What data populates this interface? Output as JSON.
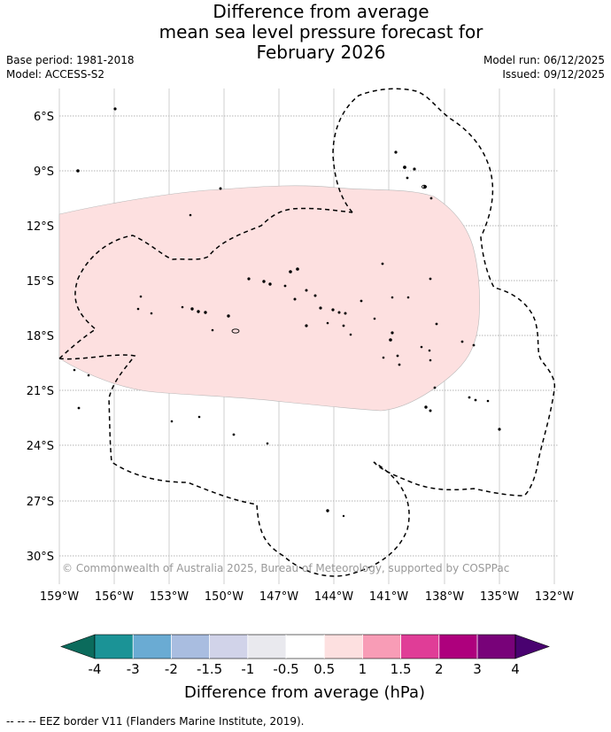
{
  "title": {
    "line1": "Difference from average",
    "line2": "mean sea level pressure forecast for",
    "line3": "February 2026"
  },
  "meta": {
    "base_period": "Base period: 1981-2018",
    "model": "Model: ACCESS-S2",
    "model_run": "Model run: 06/12/2025",
    "issued": "Issued: 09/12/2025"
  },
  "map": {
    "lat_labels": [
      "6°S",
      "9°S",
      "12°S",
      "15°S",
      "18°S",
      "21°S",
      "24°S",
      "27°S",
      "30°S"
    ],
    "lon_labels": [
      "159°W",
      "156°W",
      "153°W",
      "150°W",
      "147°W",
      "144°W",
      "141°W",
      "138°W",
      "135°W",
      "132°W"
    ],
    "credit": "© Commonwealth of Australia 2025, Bureau of Meteorology, supported by COSPPac",
    "anomaly_fill_color": "#fde0e0",
    "anomaly_category": "0.5 to 1"
  },
  "colorbar": {
    "ticks": [
      "-4",
      "-3",
      "-2",
      "-1.5",
      "-1",
      "-0.5",
      "0.5",
      "1",
      "1.5",
      "2",
      "3",
      "4"
    ],
    "colors": [
      "#1b9396",
      "#6aabd3",
      "#a9bde0",
      "#d1d3e9",
      "#e9e9ee",
      "#ffffff",
      "#fde0e0",
      "#f89cb6",
      "#e03d97",
      "#ae007d",
      "#780279"
    ],
    "under_color": "#0b6b5c",
    "over_color": "#490270",
    "title": "Difference from average (hPa)"
  },
  "footnote": "-- -- -- EEZ border V11 (Flanders Marine Institute, 2019)."
}
